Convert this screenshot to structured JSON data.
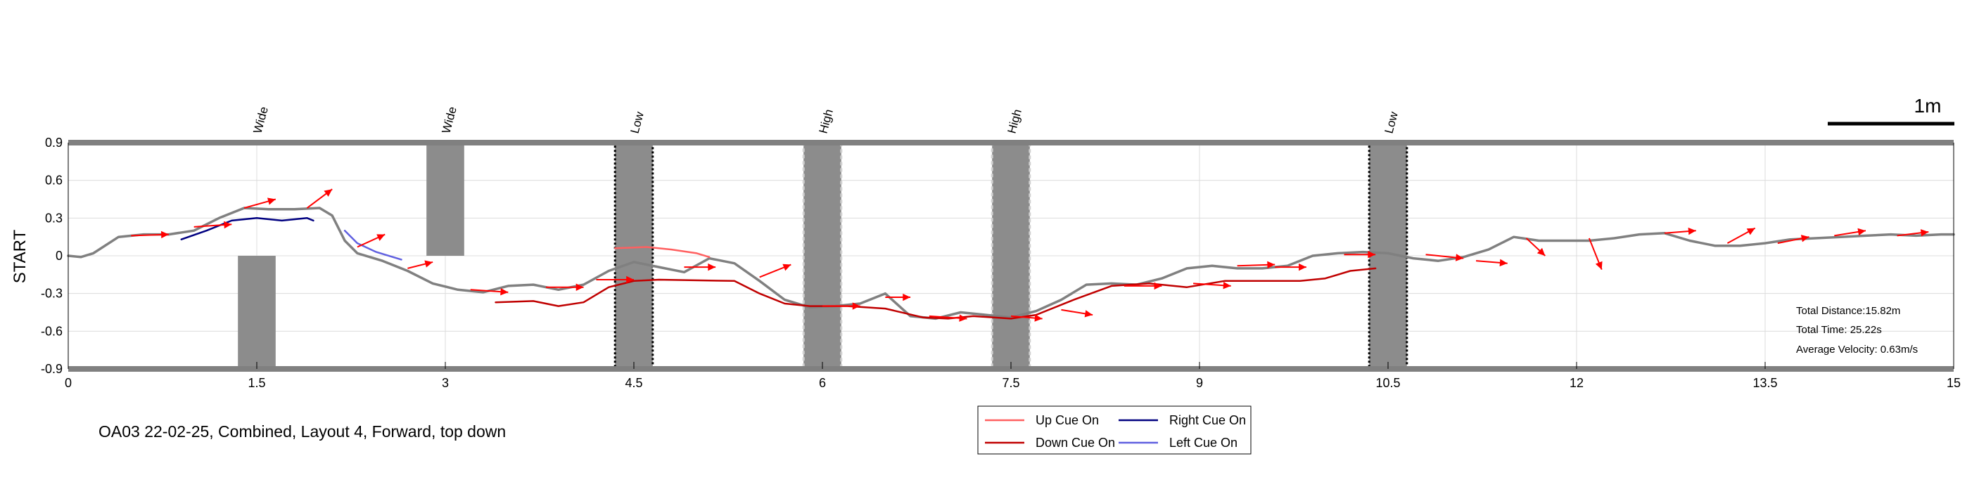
{
  "chart_data": {
    "type": "line",
    "caption": "OA03 22-02-25, Combined, Layout 4, Forward, top down",
    "ylabel": "START",
    "xlim": [
      0,
      15
    ],
    "ylim": [
      -0.9,
      0.9
    ],
    "xticks": [
      "0",
      "1.5",
      "3",
      "4.5",
      "6",
      "7.5",
      "9",
      "10.5",
      "12",
      "13.5",
      "15"
    ],
    "yticks": [
      "0.9",
      "0.6",
      "0.3",
      "0",
      "-0.3",
      "-0.6",
      "-0.9"
    ],
    "grid": true,
    "scale_bar": "1m",
    "colors": {
      "path": "#808080",
      "up_cue": "#ff6060",
      "down_cue": "#c00000",
      "right_cue": "#000080",
      "left_cue": "#6060e0",
      "arrow": "#ff0000",
      "obstacle": "#8c8c8c",
      "wall": "#808080"
    },
    "obstacles": [
      {
        "label": "Wide",
        "type": "wide",
        "x": [
          1.35,
          1.65
        ],
        "y": [
          -0.9,
          0
        ]
      },
      {
        "label": "Wide",
        "type": "wide",
        "x": [
          2.85,
          3.15
        ],
        "y": [
          0,
          0.9
        ]
      },
      {
        "label": "Low",
        "type": "low",
        "x": [
          4.35,
          4.65
        ],
        "y": [
          -0.9,
          0.9
        ]
      },
      {
        "label": "High",
        "type": "high",
        "x": [
          5.85,
          6.15
        ],
        "y": [
          -0.9,
          0.9
        ]
      },
      {
        "label": "High",
        "type": "high",
        "x": [
          7.35,
          7.65
        ],
        "y": [
          -0.9,
          0.9
        ]
      },
      {
        "label": "Low",
        "type": "low",
        "x": [
          10.35,
          10.65
        ],
        "y": [
          -0.9,
          0.9
        ]
      }
    ],
    "series": [
      {
        "name": "Path",
        "key": "path",
        "x": [
          0,
          0.1,
          0.2,
          0.4,
          0.6,
          0.8,
          1.0,
          1.2,
          1.4,
          1.6,
          1.8,
          2.0,
          2.1,
          2.2,
          2.3,
          2.5,
          2.7,
          2.9,
          3.1,
          3.3,
          3.5,
          3.7,
          3.9,
          4.1,
          4.3,
          4.5,
          4.6,
          4.7,
          4.9,
          5.1,
          5.3,
          5.5,
          5.7,
          5.9,
          6.1,
          6.3,
          6.5,
          6.7,
          6.9,
          7.1,
          7.3,
          7.5,
          7.7,
          7.9,
          8.1,
          8.3,
          8.5,
          8.7,
          8.9,
          9.1,
          9.3,
          9.5,
          9.7,
          9.9,
          10.1,
          10.3,
          10.5,
          10.7,
          10.9,
          11.1,
          11.3,
          11.5,
          11.7,
          11.9,
          12.1,
          12.3,
          12.5,
          12.7,
          12.9,
          13.1,
          13.3,
          13.5,
          13.7,
          13.9,
          14.1,
          14.3,
          14.5,
          14.7,
          14.9,
          15
        ],
        "y": [
          0,
          -0.01,
          0.02,
          0.15,
          0.17,
          0.17,
          0.2,
          0.3,
          0.38,
          0.37,
          0.37,
          0.38,
          0.32,
          0.12,
          0.02,
          -0.04,
          -0.12,
          -0.22,
          -0.27,
          -0.29,
          -0.24,
          -0.23,
          -0.27,
          -0.23,
          -0.12,
          -0.05,
          -0.07,
          -0.09,
          -0.13,
          -0.02,
          -0.06,
          -0.2,
          -0.35,
          -0.41,
          -0.4,
          -0.38,
          -0.3,
          -0.48,
          -0.5,
          -0.45,
          -0.47,
          -0.49,
          -0.44,
          -0.35,
          -0.23,
          -0.22,
          -0.23,
          -0.18,
          -0.1,
          -0.08,
          -0.1,
          -0.1,
          -0.08,
          0,
          0.02,
          0.03,
          0.02,
          -0.02,
          -0.04,
          -0.01,
          0.05,
          0.15,
          0.12,
          0.12,
          0.12,
          0.14,
          0.17,
          0.18,
          0.12,
          0.08,
          0.08,
          0.1,
          0.13,
          0.14,
          0.15,
          0.16,
          0.17,
          0.16,
          0.17,
          0.17
        ]
      },
      {
        "name": "Up Cue On",
        "key": "up_cue",
        "x": [
          4.35,
          4.6,
          4.8,
          5.0,
          5.1
        ],
        "y": [
          0.06,
          0.07,
          0.05,
          0.02,
          -0.01
        ]
      },
      {
        "name": "Down Cue On",
        "key": "down_cue",
        "x": [
          3.4,
          3.7,
          3.9,
          4.1,
          4.3,
          4.5,
          4.7,
          5.3,
          5.5,
          5.7,
          5.9,
          6.2,
          6.5,
          6.8,
          7.0,
          7.2,
          7.5,
          7.7,
          8.0,
          8.3,
          8.6,
          8.9,
          9.2,
          9.5,
          9.8,
          10.0,
          10.2,
          10.4
        ],
        "y": [
          -0.37,
          -0.36,
          -0.4,
          -0.37,
          -0.25,
          -0.2,
          -0.19,
          -0.2,
          -0.3,
          -0.38,
          -0.4,
          -0.4,
          -0.42,
          -0.49,
          -0.5,
          -0.48,
          -0.5,
          -0.47,
          -0.35,
          -0.24,
          -0.22,
          -0.25,
          -0.2,
          -0.2,
          -0.2,
          -0.18,
          -0.12,
          -0.1
        ]
      },
      {
        "name": "Right Cue On",
        "key": "right_cue",
        "x": [
          0.9,
          1.1,
          1.3,
          1.5,
          1.7,
          1.9,
          1.95
        ],
        "y": [
          0.13,
          0.2,
          0.28,
          0.3,
          0.28,
          0.3,
          0.28
        ]
      },
      {
        "name": "Left Cue On",
        "key": "left_cue",
        "x": [
          2.2,
          2.3,
          2.45,
          2.65
        ],
        "y": [
          0.2,
          0.1,
          0.03,
          -0.03
        ]
      }
    ],
    "arrows": [
      {
        "x": 0.5,
        "y": 0.16,
        "dx": 0.3,
        "dy": 0.01
      },
      {
        "x": 1.0,
        "y": 0.23,
        "dx": 0.3,
        "dy": 0.02
      },
      {
        "x": 1.4,
        "y": 0.38,
        "dx": 0.25,
        "dy": 0.07
      },
      {
        "x": 1.9,
        "y": 0.38,
        "dx": 0.2,
        "dy": 0.15
      },
      {
        "x": 2.3,
        "y": 0.07,
        "dx": 0.22,
        "dy": 0.1
      },
      {
        "x": 2.7,
        "y": -0.1,
        "dx": 0.2,
        "dy": 0.05
      },
      {
        "x": 3.2,
        "y": -0.27,
        "dx": 0.3,
        "dy": -0.02
      },
      {
        "x": 3.8,
        "y": -0.25,
        "dx": 0.3,
        "dy": 0
      },
      {
        "x": 4.2,
        "y": -0.19,
        "dx": 0.3,
        "dy": 0
      },
      {
        "x": 4.9,
        "y": -0.09,
        "dx": 0.25,
        "dy": 0
      },
      {
        "x": 5.5,
        "y": -0.17,
        "dx": 0.25,
        "dy": 0.1
      },
      {
        "x": 6.0,
        "y": -0.4,
        "dx": 0.3,
        "dy": 0
      },
      {
        "x": 6.5,
        "y": -0.33,
        "dx": 0.2,
        "dy": 0
      },
      {
        "x": 6.85,
        "y": -0.48,
        "dx": 0.3,
        "dy": -0.02
      },
      {
        "x": 7.5,
        "y": -0.48,
        "dx": 0.25,
        "dy": -0.02
      },
      {
        "x": 7.9,
        "y": -0.43,
        "dx": 0.25,
        "dy": -0.04
      },
      {
        "x": 8.4,
        "y": -0.24,
        "dx": 0.3,
        "dy": 0
      },
      {
        "x": 8.95,
        "y": -0.22,
        "dx": 0.3,
        "dy": -0.02
      },
      {
        "x": 9.3,
        "y": -0.08,
        "dx": 0.3,
        "dy": 0.01
      },
      {
        "x": 9.6,
        "y": -0.09,
        "dx": 0.25,
        "dy": 0
      },
      {
        "x": 10.15,
        "y": 0.01,
        "dx": 0.25,
        "dy": 0
      },
      {
        "x": 10.8,
        "y": 0.01,
        "dx": 0.3,
        "dy": -0.03
      },
      {
        "x": 11.2,
        "y": -0.04,
        "dx": 0.25,
        "dy": -0.02
      },
      {
        "x": 11.6,
        "y": 0.14,
        "dx": 0.15,
        "dy": -0.14
      },
      {
        "x": 12.1,
        "y": 0.14,
        "dx": 0.1,
        "dy": -0.25
      },
      {
        "x": 12.7,
        "y": 0.18,
        "dx": 0.25,
        "dy": 0.02
      },
      {
        "x": 13.2,
        "y": 0.1,
        "dx": 0.22,
        "dy": 0.12
      },
      {
        "x": 13.6,
        "y": 0.1,
        "dx": 0.25,
        "dy": 0.05
      },
      {
        "x": 14.05,
        "y": 0.16,
        "dx": 0.25,
        "dy": 0.04
      },
      {
        "x": 14.55,
        "y": 0.16,
        "dx": 0.25,
        "dy": 0.03
      }
    ],
    "legend": [
      {
        "label": "Up Cue On",
        "key": "up_cue"
      },
      {
        "label": "Right Cue On",
        "key": "right_cue"
      },
      {
        "label": "Down Cue On",
        "key": "down_cue"
      },
      {
        "label": "Left Cue On",
        "key": "left_cue"
      }
    ],
    "info": [
      "Total Distance:15.82m",
      "Total Time: 25.22s",
      "Average Velocity: 0.63m/s"
    ]
  }
}
